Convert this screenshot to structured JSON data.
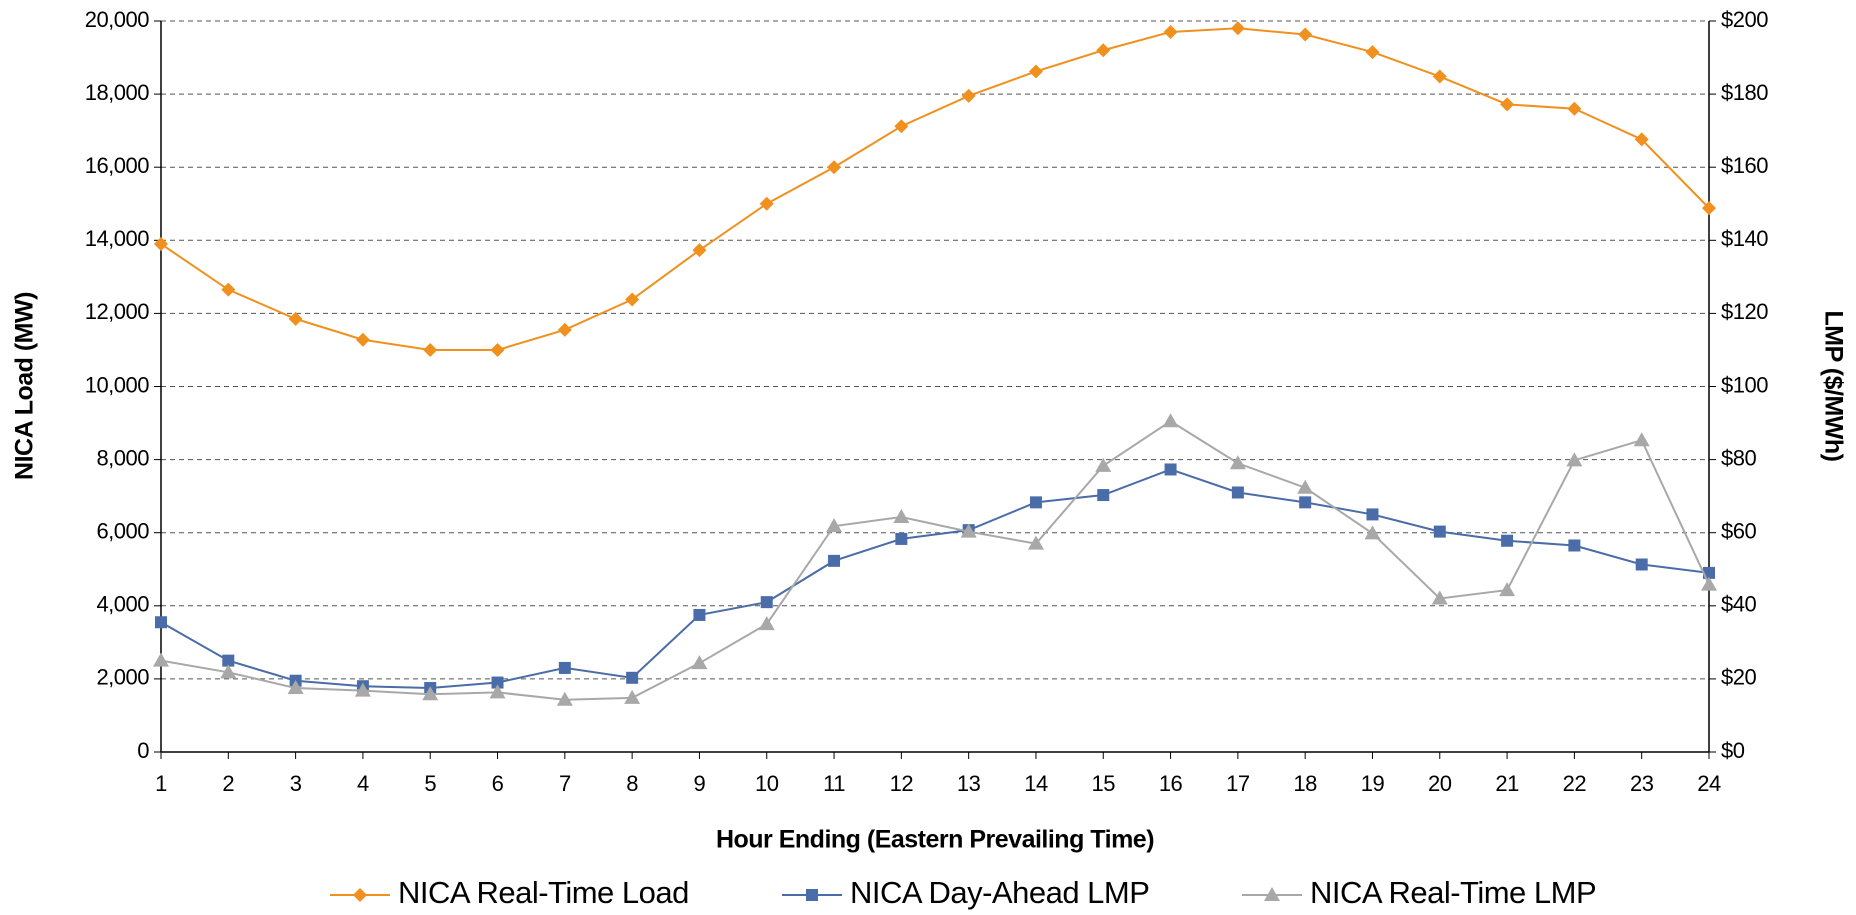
{
  "chart_data": {
    "type": "line",
    "x_label": "Hour Ending (Eastern Prevailing Time)",
    "y_label": "NICA Load (MW)",
    "y2_label": "LMP ($/MWh)",
    "x": [
      1,
      2,
      3,
      4,
      5,
      6,
      7,
      8,
      9,
      10,
      11,
      12,
      13,
      14,
      15,
      16,
      17,
      18,
      19,
      20,
      21,
      22,
      23,
      24
    ],
    "xlim": [
      1,
      24
    ],
    "ylim": [
      0,
      20000
    ],
    "yticks": [
      0,
      {
        "value": 2000,
        "label": "2,000"
      },
      {
        "value": 4000,
        "label": "4,000"
      },
      {
        "value": 6000,
        "label": "6,000"
      },
      {
        "value": 8000,
        "label": "8,000"
      },
      {
        "value": 10000,
        "label": "10,000"
      },
      {
        "value": 12000,
        "label": "12,000"
      },
      {
        "value": 14000,
        "label": "14,000"
      },
      {
        "value": 16000,
        "label": "16,000"
      },
      {
        "value": 18000,
        "label": "18,000"
      },
      {
        "value": 20000,
        "label": "20,000"
      }
    ],
    "y2lim": [
      0,
      200
    ],
    "y2ticks": [
      {
        "value": 0,
        "label": "$0"
      },
      {
        "value": 20,
        "label": "$20"
      },
      {
        "value": 40,
        "label": "$40"
      },
      {
        "value": 60,
        "label": "$60"
      },
      {
        "value": 80,
        "label": "$80"
      },
      {
        "value": 100,
        "label": "$100"
      },
      {
        "value": 120,
        "label": "$120"
      },
      {
        "value": 140,
        "label": "$140"
      },
      {
        "value": 160,
        "label": "$160"
      },
      {
        "value": 180,
        "label": "$180"
      },
      {
        "value": 200,
        "label": "$200"
      }
    ],
    "grid": true,
    "series": [
      {
        "name": "NICA Real-Time Load",
        "color": "#f0901e",
        "marker": "diamond",
        "values": [
          13900,
          12650,
          11850,
          11280,
          11000,
          11000,
          11550,
          12380,
          13730,
          15000,
          16000,
          17120,
          17950,
          18620,
          19200,
          19700,
          19800,
          19630,
          19150,
          18480,
          17720,
          17600,
          16760,
          14880
        ]
      },
      {
        "name": "NICA Day-Ahead LMP",
        "color": "#4a6ca8",
        "marker": "square",
        "axis": "y2",
        "values": [
          35.5,
          25,
          19.5,
          18,
          17.5,
          19,
          23,
          20.3,
          37.5,
          41,
          52.3,
          58.3,
          60.7,
          68.3,
          70.3,
          77.3,
          71,
          68.3,
          65,
          60.3,
          57.8,
          56.5,
          51.3,
          49
        ]
      },
      {
        "name": "NICA Real-Time LMP",
        "color": "#a8a8a8",
        "marker": "triangle",
        "axis": "y2",
        "values": [
          25,
          21.8,
          17.5,
          16.8,
          15.8,
          16.3,
          14.3,
          14.8,
          24.3,
          35,
          61.8,
          64.3,
          60.3,
          57,
          78.3,
          90.5,
          79,
          72.3,
          59.8,
          42,
          44.3,
          79.8,
          85.3,
          45.8
        ]
      }
    ]
  }
}
